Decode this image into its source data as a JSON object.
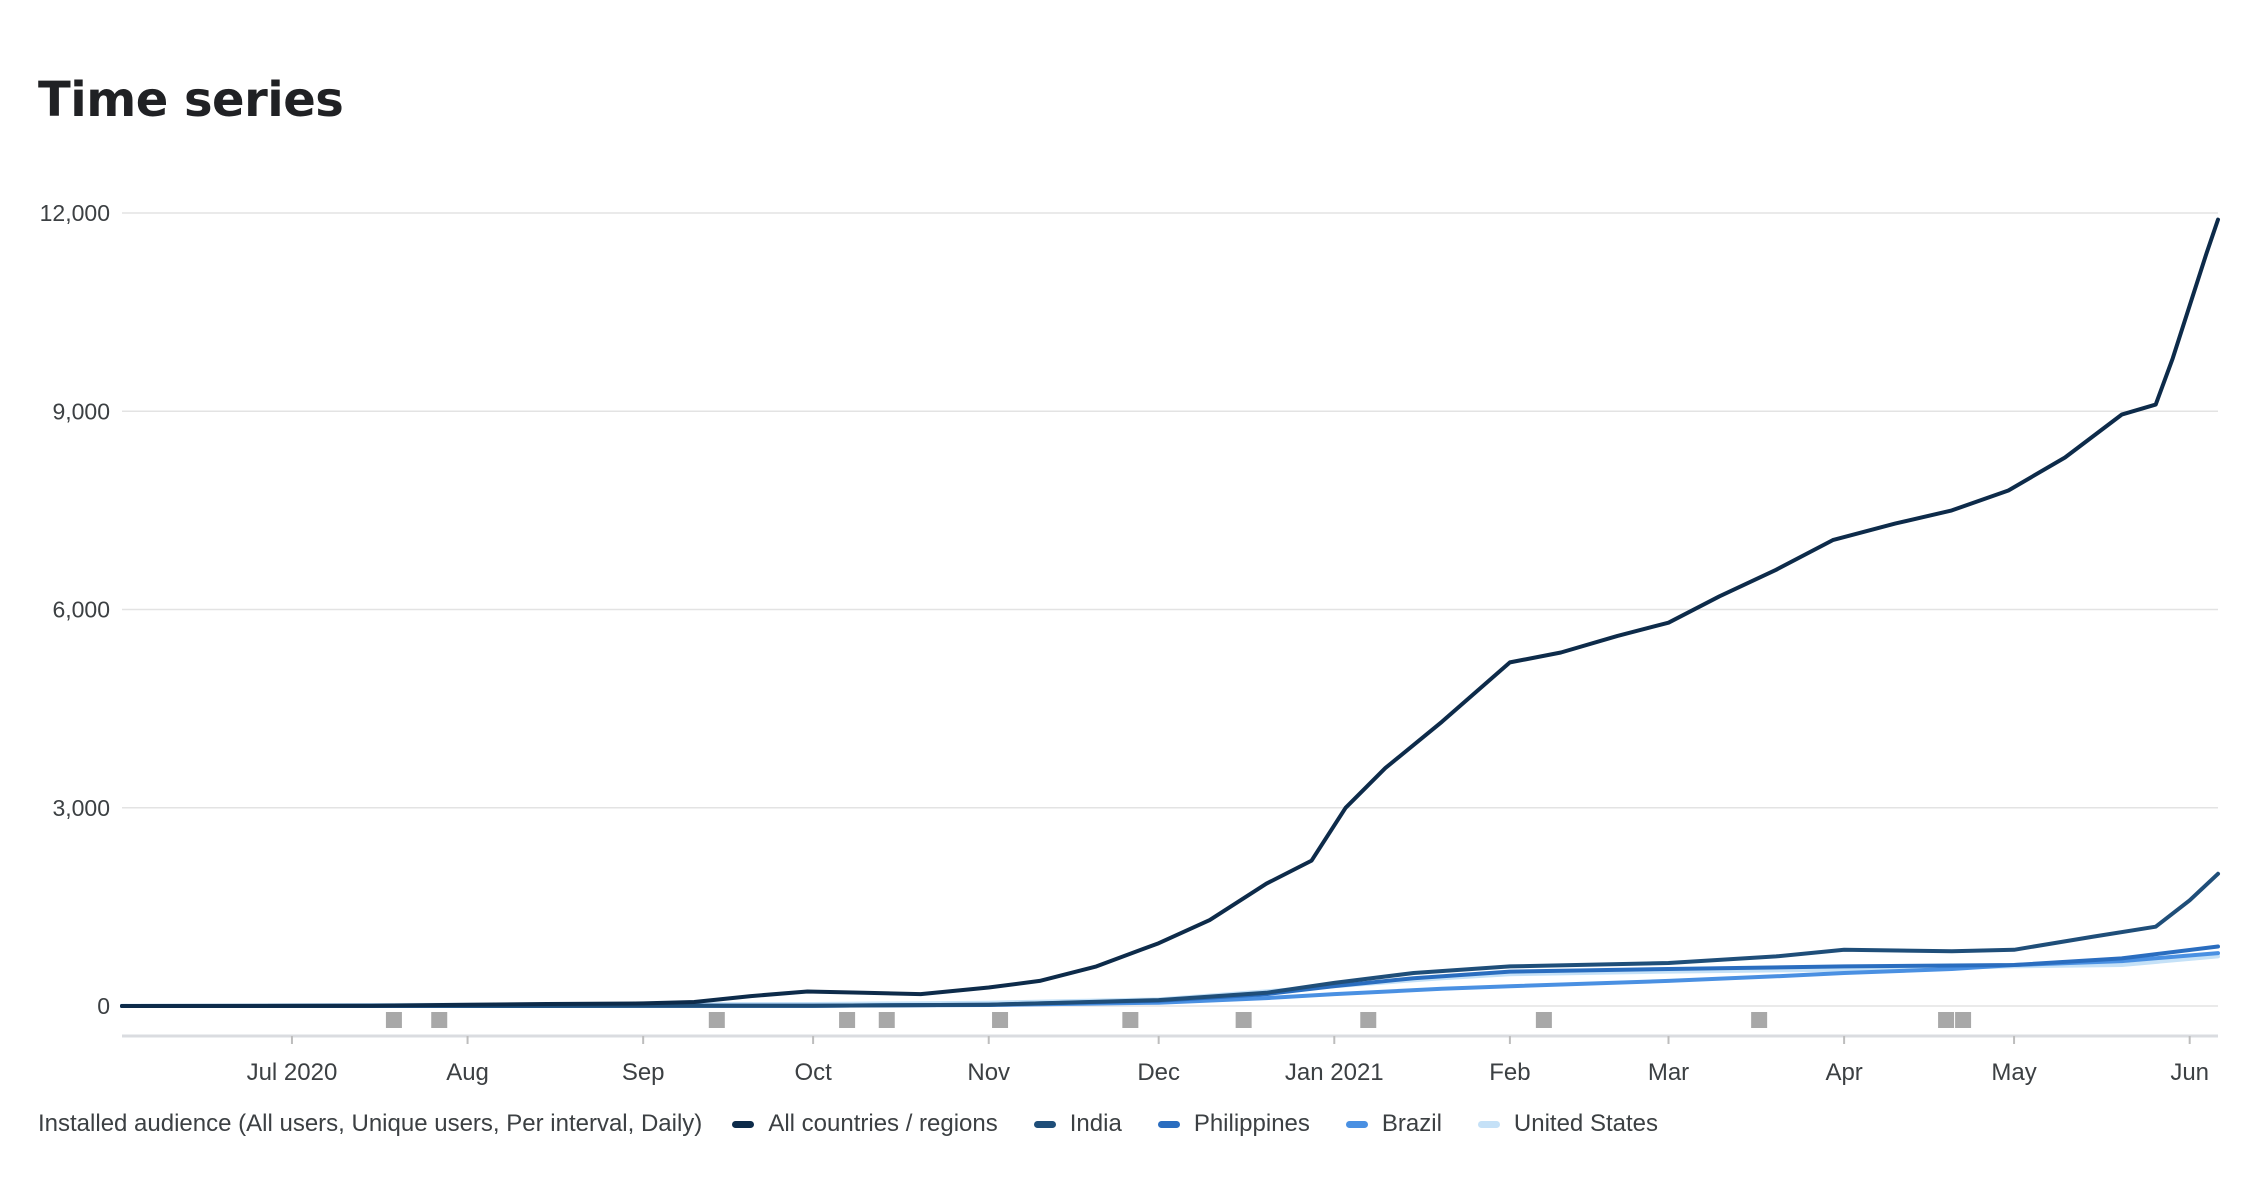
{
  "title": "Time series",
  "legend_prefix": "Installed audience (All users, Unique users, Per interval, Daily)",
  "chart_data": {
    "type": "line",
    "title": "Time series",
    "xlabel": "",
    "ylabel": "",
    "x_range": [
      "2020-06-01",
      "2021-06-06"
    ],
    "ylim": [
      0,
      12000
    ],
    "y_ticks": [
      0,
      3000,
      6000,
      9000,
      12000
    ],
    "y_tick_labels": [
      "0",
      "3,000",
      "6,000",
      "9,000",
      "12,000"
    ],
    "x_ticks": [
      {
        "date": "2020-07-01",
        "label": "Jul 2020"
      },
      {
        "date": "2020-08-01",
        "label": "Aug"
      },
      {
        "date": "2020-09-01",
        "label": "Sep"
      },
      {
        "date": "2020-10-01",
        "label": "Oct"
      },
      {
        "date": "2020-11-01",
        "label": "Nov"
      },
      {
        "date": "2020-12-01",
        "label": "Dec"
      },
      {
        "date": "2021-01-01",
        "label": "Jan 2021"
      },
      {
        "date": "2021-02-01",
        "label": "Feb"
      },
      {
        "date": "2021-03-01",
        "label": "Mar"
      },
      {
        "date": "2021-04-01",
        "label": "Apr"
      },
      {
        "date": "2021-05-01",
        "label": "May"
      },
      {
        "date": "2021-06-01",
        "label": "Jun"
      }
    ],
    "grid": true,
    "legend_position": "bottom",
    "annotation_markers": [
      "2020-07-19",
      "2020-07-27",
      "2020-09-14",
      "2020-10-07",
      "2020-10-14",
      "2020-11-03",
      "2020-11-26",
      "2020-12-16",
      "2021-01-07",
      "2021-02-07",
      "2021-03-17",
      "2021-04-19",
      "2021-04-22"
    ],
    "series": [
      {
        "name": "All countries / regions",
        "color": "#0d2b4a",
        "points": [
          [
            "2020-06-01",
            0
          ],
          [
            "2020-07-15",
            5
          ],
          [
            "2020-08-01",
            20
          ],
          [
            "2020-08-15",
            30
          ],
          [
            "2020-09-01",
            40
          ],
          [
            "2020-09-10",
            60
          ],
          [
            "2020-09-20",
            150
          ],
          [
            "2020-09-30",
            220
          ],
          [
            "2020-10-10",
            200
          ],
          [
            "2020-10-20",
            180
          ],
          [
            "2020-11-01",
            280
          ],
          [
            "2020-11-10",
            380
          ],
          [
            "2020-11-20",
            600
          ],
          [
            "2020-12-01",
            950
          ],
          [
            "2020-12-10",
            1300
          ],
          [
            "2020-12-20",
            1850
          ],
          [
            "2020-12-28",
            2200
          ],
          [
            "2021-01-03",
            3000
          ],
          [
            "2021-01-10",
            3600
          ],
          [
            "2021-01-20",
            4300
          ],
          [
            "2021-02-01",
            5200
          ],
          [
            "2021-02-10",
            5350
          ],
          [
            "2021-02-20",
            5600
          ],
          [
            "2021-03-01",
            5800
          ],
          [
            "2021-03-10",
            6200
          ],
          [
            "2021-03-20",
            6600
          ],
          [
            "2021-03-30",
            7050
          ],
          [
            "2021-04-10",
            7300
          ],
          [
            "2021-04-20",
            7500
          ],
          [
            "2021-04-30",
            7800
          ],
          [
            "2021-05-10",
            8300
          ],
          [
            "2021-05-20",
            8950
          ],
          [
            "2021-05-26",
            9100
          ],
          [
            "2021-05-29",
            9800
          ],
          [
            "2021-06-01",
            10600
          ],
          [
            "2021-06-04",
            11400
          ],
          [
            "2021-06-06",
            11900
          ]
        ]
      },
      {
        "name": "India",
        "color": "#1f4e79",
        "points": [
          [
            "2020-06-01",
            0
          ],
          [
            "2020-10-01",
            5
          ],
          [
            "2020-11-01",
            20
          ],
          [
            "2020-12-01",
            90
          ],
          [
            "2020-12-20",
            200
          ],
          [
            "2021-01-01",
            350
          ],
          [
            "2021-01-15",
            500
          ],
          [
            "2021-02-01",
            600
          ],
          [
            "2021-03-01",
            650
          ],
          [
            "2021-03-20",
            750
          ],
          [
            "2021-04-01",
            850
          ],
          [
            "2021-04-20",
            830
          ],
          [
            "2021-05-01",
            850
          ],
          [
            "2021-05-15",
            1050
          ],
          [
            "2021-05-26",
            1200
          ],
          [
            "2021-06-01",
            1600
          ],
          [
            "2021-06-06",
            2000
          ]
        ]
      },
      {
        "name": "Philippines",
        "color": "#2a6dbf",
        "points": [
          [
            "2020-06-01",
            0
          ],
          [
            "2020-10-01",
            5
          ],
          [
            "2020-11-01",
            20
          ],
          [
            "2020-12-01",
            80
          ],
          [
            "2020-12-20",
            180
          ],
          [
            "2021-01-01",
            300
          ],
          [
            "2021-01-15",
            420
          ],
          [
            "2021-02-01",
            520
          ],
          [
            "2021-03-01",
            560
          ],
          [
            "2021-04-01",
            600
          ],
          [
            "2021-05-01",
            620
          ],
          [
            "2021-05-20",
            720
          ],
          [
            "2021-06-06",
            900
          ]
        ]
      },
      {
        "name": "Brazil",
        "color": "#4a90e2",
        "points": [
          [
            "2020-06-01",
            0
          ],
          [
            "2020-10-01",
            5
          ],
          [
            "2020-11-01",
            15
          ],
          [
            "2020-12-01",
            50
          ],
          [
            "2020-12-20",
            120
          ],
          [
            "2021-01-01",
            180
          ],
          [
            "2021-01-20",
            260
          ],
          [
            "2021-02-01",
            300
          ],
          [
            "2021-03-01",
            380
          ],
          [
            "2021-03-20",
            450
          ],
          [
            "2021-04-01",
            500
          ],
          [
            "2021-04-20",
            560
          ],
          [
            "2021-05-01",
            620
          ],
          [
            "2021-05-20",
            680
          ],
          [
            "2021-06-06",
            800
          ]
        ]
      },
      {
        "name": "United States",
        "color": "#c5e1f7",
        "points": [
          [
            "2020-06-01",
            5
          ],
          [
            "2020-07-01",
            10
          ],
          [
            "2020-08-01",
            20
          ],
          [
            "2020-09-01",
            25
          ],
          [
            "2020-10-01",
            30
          ],
          [
            "2020-11-01",
            50
          ],
          [
            "2020-12-01",
            100
          ],
          [
            "2021-01-01",
            300
          ],
          [
            "2021-01-20",
            420
          ],
          [
            "2021-02-01",
            480
          ],
          [
            "2021-03-01",
            520
          ],
          [
            "2021-04-01",
            550
          ],
          [
            "2021-05-01",
            600
          ],
          [
            "2021-05-20",
            620
          ],
          [
            "2021-06-06",
            750
          ]
        ]
      }
    ]
  }
}
